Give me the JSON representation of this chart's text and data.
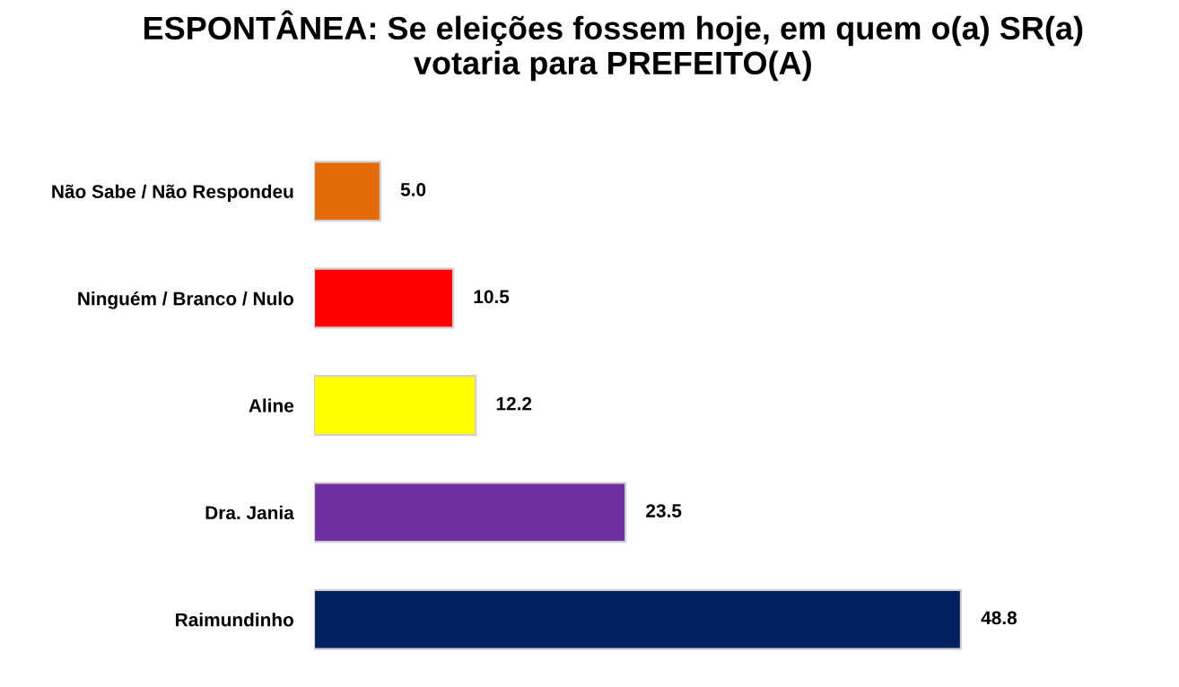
{
  "chart_data": {
    "type": "bar",
    "orientation": "horizontal",
    "title": "ESPONTÂNEA: Se eleições fossem hoje, em quem o(a) SR(a)\nvotaria para PREFEITO(A)",
    "categories": [
      "Não Sabe / Não Respondeu",
      "Ninguém / Branco / Nulo",
      "Aline",
      "Dra. Jania",
      "Raimundinho"
    ],
    "values": [
      5.0,
      10.5,
      12.2,
      23.5,
      48.8
    ],
    "value_labels": [
      "5.0",
      "10.5",
      "12.2",
      "23.5",
      "48.8"
    ],
    "colors": [
      "#e36c09",
      "#ff0000",
      "#ffff00",
      "#7030a0",
      "#002060"
    ]
  }
}
